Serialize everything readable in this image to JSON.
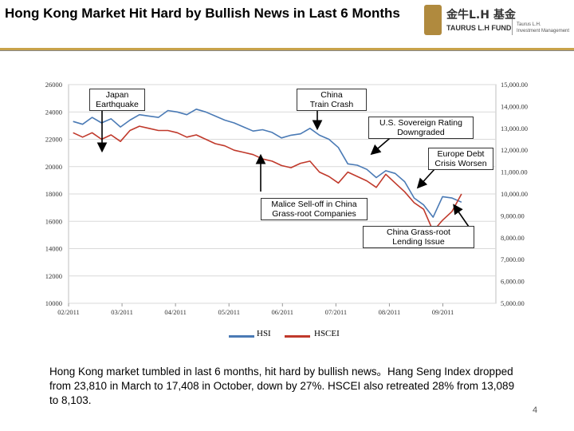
{
  "header": {
    "title": "Hong Kong Market Hit Hard by Bullish News in Last 6 Months",
    "logo_cn": "金牛L.H 基金",
    "logo_en": "TAURUS L.H FUND",
    "logo_sub1": "Taurus L.H.",
    "logo_sub2": "Investment Management"
  },
  "summary": "Hong Kong market tumbled in last 6 months, hit hard by bullish news。Hang Seng Index dropped from 23,810 in March to 17,408 in October, down by 27%. HSCEI also retreated 28% from 13,089 to 8,103.",
  "page_number": "4",
  "colors": {
    "hsi": "#4a7ab5",
    "hscei": "#c0392b",
    "grid": "#d9d9d9",
    "gold": "#c8a24a"
  },
  "chart_data": {
    "type": "line",
    "title": "",
    "x_labels": [
      "02/2011",
      "03/2011",
      "04/2011",
      "05/2011",
      "06/2011",
      "07/2011",
      "08/2011",
      "09/2011"
    ],
    "x_range": [
      0,
      8.3
    ],
    "y_left": {
      "ticks": [
        10000,
        12000,
        14000,
        16000,
        18000,
        20000,
        22000,
        24000,
        26000
      ],
      "range": [
        10000,
        26000
      ]
    },
    "y_right": {
      "ticks": [
        "5,000.00",
        "6,000.00",
        "7,000.00",
        "8,000.00",
        "9,000.00",
        "10,000.00",
        "11,000.00",
        "12,000.00",
        "13,000.00",
        "14,000.00",
        "15,000.00"
      ],
      "range": [
        5000,
        15000
      ]
    },
    "series": [
      {
        "name": "HSI",
        "axis": "left",
        "color": "#4a7ab5",
        "x": [
          0,
          0.2,
          0.4,
          0.6,
          0.8,
          1.0,
          1.2,
          1.4,
          1.6,
          1.8,
          2.0,
          2.2,
          2.4,
          2.6,
          2.8,
          3.0,
          3.2,
          3.4,
          3.6,
          3.8,
          4.0,
          4.2,
          4.4,
          4.6,
          4.8,
          5.0,
          5.2,
          5.4,
          5.6,
          5.8,
          6.0,
          6.2,
          6.4,
          6.6,
          6.8,
          7.0,
          7.2,
          7.4,
          7.6,
          7.8,
          8.0,
          8.2
        ],
        "y": [
          23300,
          23100,
          23600,
          23200,
          23500,
          22900,
          23400,
          23800,
          23700,
          23600,
          24100,
          24000,
          23800,
          24200,
          24000,
          23700,
          23400,
          23200,
          22900,
          22600,
          22700,
          22500,
          22100,
          22300,
          22400,
          22800,
          22300,
          22000,
          21400,
          20200,
          20100,
          19800,
          19200,
          19700,
          19500,
          18900,
          17700,
          17200,
          16300,
          17800,
          17700,
          17400
        ]
      },
      {
        "name": "HSCEI",
        "axis": "right",
        "color": "#c0392b",
        "x": [
          0,
          0.2,
          0.4,
          0.6,
          0.8,
          1.0,
          1.2,
          1.4,
          1.6,
          1.8,
          2.0,
          2.2,
          2.4,
          2.6,
          2.8,
          3.0,
          3.2,
          3.4,
          3.6,
          3.8,
          4.0,
          4.2,
          4.4,
          4.6,
          4.8,
          5.0,
          5.2,
          5.4,
          5.6,
          5.8,
          6.0,
          6.2,
          6.4,
          6.6,
          6.8,
          7.0,
          7.2,
          7.4,
          7.6,
          7.8,
          8.0,
          8.2
        ],
        "y": [
          12800,
          12600,
          12800,
          12500,
          12700,
          12400,
          12900,
          13100,
          13000,
          12900,
          12900,
          12800,
          12600,
          12700,
          12500,
          12300,
          12200,
          12000,
          11900,
          11800,
          11600,
          11500,
          11300,
          11200,
          11400,
          11500,
          11000,
          10800,
          10500,
          11000,
          10800,
          10600,
          10300,
          10900,
          10500,
          10100,
          9600,
          9300,
          8300,
          8800,
          9200,
          10000
        ]
      }
    ],
    "legend": [
      "HSI",
      "HSCEI"
    ],
    "annotations": [
      {
        "text_lines": [
          "Japan",
          "Earthquake"
        ],
        "target": [
          1.3,
          22800
        ]
      },
      {
        "text_lines": [
          "China",
          "Train Crash"
        ],
        "target": [
          6.1,
          22300
        ]
      },
      {
        "text_lines": [
          "U.S. Sovereign Rating",
          "Downgraded"
        ],
        "target": [
          8.2,
          20800
        ]
      },
      {
        "text_lines": [
          "Europe  Debt",
          "Crisis Worsen"
        ],
        "target": [
          8.95,
          18600
        ]
      },
      {
        "text_lines": [
          "Malice Sell-off in China",
          "Grass-root Companies"
        ],
        "target": [
          6.85,
          20800
        ]
      },
      {
        "text_lines": [
          "China Grass-root",
          "Lending Issue"
        ],
        "target": [
          9.2,
          16200
        ]
      }
    ]
  }
}
